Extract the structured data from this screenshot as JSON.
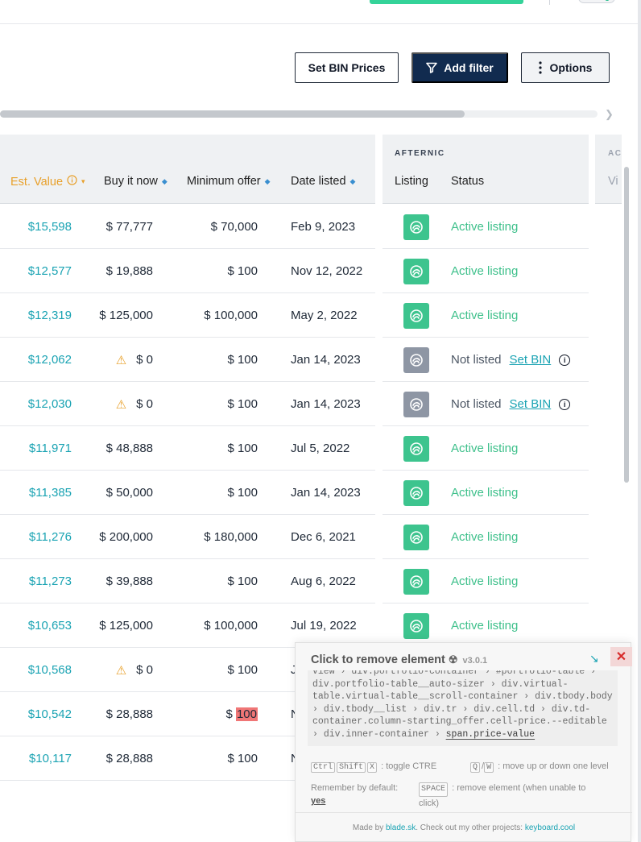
{
  "toolbar": {
    "set_bin_label": "Set BIN Prices",
    "add_filter_label": "Add filter",
    "options_label": "Options"
  },
  "table": {
    "columns": {
      "est_value": "Est. Value",
      "buy_it_now": "Buy it now",
      "minimum_offer": "Minimum offer",
      "date_listed": "Date listed"
    },
    "afternic": {
      "group_label": "AFTERNIC",
      "listing": "Listing",
      "status": "Status"
    },
    "next_group": {
      "group_label": "AC",
      "column": "Vi"
    },
    "set_bin_link": "Set BIN",
    "rows": [
      {
        "est": "$15,598",
        "buy": "$ 77,777",
        "min": "$ 70,000",
        "date": "Feb 9, 2023",
        "status": "Active listing",
        "listed": true,
        "warn": false
      },
      {
        "est": "$12,577",
        "buy": "$ 19,888",
        "min": "$ 100",
        "date": "Nov 12, 2022",
        "status": "Active listing",
        "listed": true,
        "warn": false
      },
      {
        "est": "$12,319",
        "buy": "$ 125,000",
        "min": "$ 100,000",
        "date": "May 2, 2022",
        "status": "Active listing",
        "listed": true,
        "warn": false
      },
      {
        "est": "$12,062",
        "buy": "$ 0",
        "min": "$ 100",
        "date": "Jan 14, 2023",
        "status": "Not listed",
        "listed": false,
        "warn": true
      },
      {
        "est": "$12,030",
        "buy": "$ 0",
        "min": "$ 100",
        "date": "Jan 14, 2023",
        "status": "Not listed",
        "listed": false,
        "warn": true
      },
      {
        "est": "$11,971",
        "buy": "$ 48,888",
        "min": "$ 100",
        "date": "Jul 5, 2022",
        "status": "Active listing",
        "listed": true,
        "warn": false
      },
      {
        "est": "$11,385",
        "buy": "$ 50,000",
        "min": "$ 100",
        "date": "Jan 14, 2023",
        "status": "Active listing",
        "listed": true,
        "warn": false
      },
      {
        "est": "$11,276",
        "buy": "$ 200,000",
        "min": "$ 180,000",
        "date": "Dec 6, 2021",
        "status": "Active listing",
        "listed": true,
        "warn": false
      },
      {
        "est": "$11,273",
        "buy": "$ 39,888",
        "min": "$ 100",
        "date": "Aug 6, 2022",
        "status": "Active listing",
        "listed": true,
        "warn": false
      },
      {
        "est": "$10,653",
        "buy": "$ 125,000",
        "min": "$ 100,000",
        "date": "Jul 19, 2022",
        "status": "Active listing",
        "listed": true,
        "warn": false
      },
      {
        "est": "$10,568",
        "buy": "$ 0",
        "min": "$ 100",
        "date": "J",
        "status": "",
        "listed": null,
        "warn": true
      },
      {
        "est": "$10,542",
        "buy": "$ 28,888",
        "min_prefix": "$ ",
        "min_highlight": "100",
        "date": "N",
        "status": "",
        "listed": null,
        "warn": false
      },
      {
        "est": "$10,117",
        "buy": "$ 28,888",
        "min": "$ 100",
        "date": "N",
        "status": "",
        "listed": null,
        "warn": false
      }
    ]
  },
  "remover": {
    "title": "Click to remove element",
    "version": "v3.0.1",
    "path": [
      "view",
      "div.portfolio-container",
      "#portfolio-table",
      "div.portfolio-table__auto-sizer",
      "div.virtual-table.virtual-table__scroll-container",
      "div.tbody.body",
      "div.tbody__list",
      "div.tr",
      "div.cell.td",
      "div.td-container.column-starting_offer.cell-price.--editable",
      "div.inner-container",
      "span.price-value"
    ],
    "keys": {
      "ctrl": "Ctrl",
      "shift": "Shift",
      "x": "X",
      "toggle_text": ": toggle CTRE",
      "q": "Q",
      "slash": "/",
      "w": "W",
      "move_text": ": move up or down one level",
      "space": "SPACE",
      "remove_text_1": ": remove element (when unable to",
      "remove_text_2": "click)"
    },
    "remember_label": "Remember by default:",
    "remember_value": "yes",
    "credit_prefix": "Made by ",
    "credit_author": "blade.sk",
    "credit_middle": ". Check out my other projects: ",
    "credit_link": "keyboard.cool"
  }
}
